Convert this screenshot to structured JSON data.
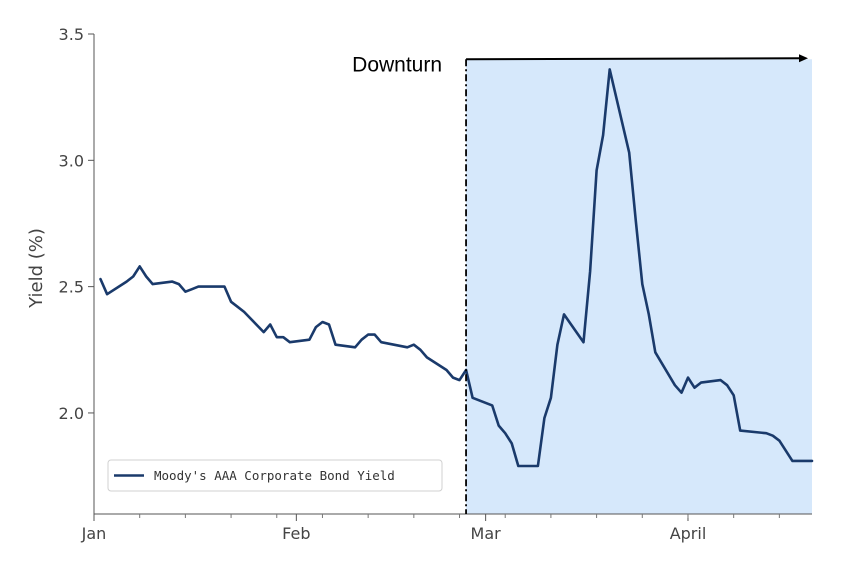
{
  "chart_data": {
    "type": "line",
    "title": "",
    "xlabel": "",
    "ylabel": "Yield (%)",
    "ylim": [
      1.6,
      3.5
    ],
    "yticks": [
      2.0,
      2.5,
      3.0,
      3.5
    ],
    "ytick_labels": [
      "2.0",
      "2.5",
      "3.0",
      "3.5"
    ],
    "xticks": [
      {
        "date": "2020-01-01",
        "label": "Jan"
      },
      {
        "date": "2020-02-01",
        "label": "Feb"
      },
      {
        "date": "2020-03-01",
        "label": "Mar"
      },
      {
        "date": "2020-04-01",
        "label": "April"
      }
    ],
    "xlim": [
      "2020-01-01",
      "2020-04-20"
    ],
    "grid": false,
    "legend_position": "bottom-left",
    "series_color": "#1a3a6b",
    "shade_color": "#d6e8fb",
    "series": [
      {
        "name": "Moody's AAA Corporate Bond Yield",
        "x": [
          "2020-01-02",
          "2020-01-03",
          "2020-01-06",
          "2020-01-07",
          "2020-01-08",
          "2020-01-09",
          "2020-01-10",
          "2020-01-13",
          "2020-01-14",
          "2020-01-15",
          "2020-01-16",
          "2020-01-17",
          "2020-01-21",
          "2020-01-22",
          "2020-01-23",
          "2020-01-24",
          "2020-01-27",
          "2020-01-28",
          "2020-01-29",
          "2020-01-30",
          "2020-01-31",
          "2020-02-03",
          "2020-02-04",
          "2020-02-05",
          "2020-02-06",
          "2020-02-07",
          "2020-02-10",
          "2020-02-11",
          "2020-02-12",
          "2020-02-13",
          "2020-02-14",
          "2020-02-18",
          "2020-02-19",
          "2020-02-20",
          "2020-02-21",
          "2020-02-24",
          "2020-02-25",
          "2020-02-26",
          "2020-02-27",
          "2020-02-28",
          "2020-03-02",
          "2020-03-03",
          "2020-03-04",
          "2020-03-05",
          "2020-03-06",
          "2020-03-09",
          "2020-03-10",
          "2020-03-11",
          "2020-03-12",
          "2020-03-13",
          "2020-03-16",
          "2020-03-17",
          "2020-03-18",
          "2020-03-19",
          "2020-03-20",
          "2020-03-23",
          "2020-03-24",
          "2020-03-25",
          "2020-03-26",
          "2020-03-27",
          "2020-03-30",
          "2020-03-31",
          "2020-04-01",
          "2020-04-02",
          "2020-04-03",
          "2020-04-06",
          "2020-04-07",
          "2020-04-08",
          "2020-04-09",
          "2020-04-13",
          "2020-04-14",
          "2020-04-15",
          "2020-04-16",
          "2020-04-17",
          "2020-04-20"
        ],
        "values": [
          2.53,
          2.47,
          2.52,
          2.54,
          2.58,
          2.54,
          2.51,
          2.52,
          2.51,
          2.48,
          2.49,
          2.5,
          2.5,
          2.44,
          2.42,
          2.4,
          2.32,
          2.35,
          2.3,
          2.3,
          2.28,
          2.29,
          2.34,
          2.36,
          2.35,
          2.27,
          2.26,
          2.29,
          2.31,
          2.31,
          2.28,
          2.26,
          2.27,
          2.25,
          2.22,
          2.17,
          2.14,
          2.13,
          2.17,
          2.06,
          2.03,
          1.95,
          1.92,
          1.88,
          1.79,
          1.79,
          1.98,
          2.06,
          2.27,
          2.39,
          2.28,
          2.56,
          2.96,
          3.1,
          3.36,
          3.03,
          2.76,
          2.51,
          2.39,
          2.24,
          2.11,
          2.08,
          2.14,
          2.1,
          2.12,
          2.13,
          2.11,
          2.07,
          1.93,
          1.92,
          1.91,
          1.89,
          1.85,
          1.81,
          1.81
        ]
      }
    ],
    "annotations": [
      {
        "text": "Downturn",
        "type": "vline-arrow",
        "x": "2020-02-27",
        "y": 3.4,
        "arrow_to": "2020-04-20"
      }
    ],
    "shaded_region": {
      "from": "2020-02-27",
      "to": "2020-04-20"
    }
  }
}
